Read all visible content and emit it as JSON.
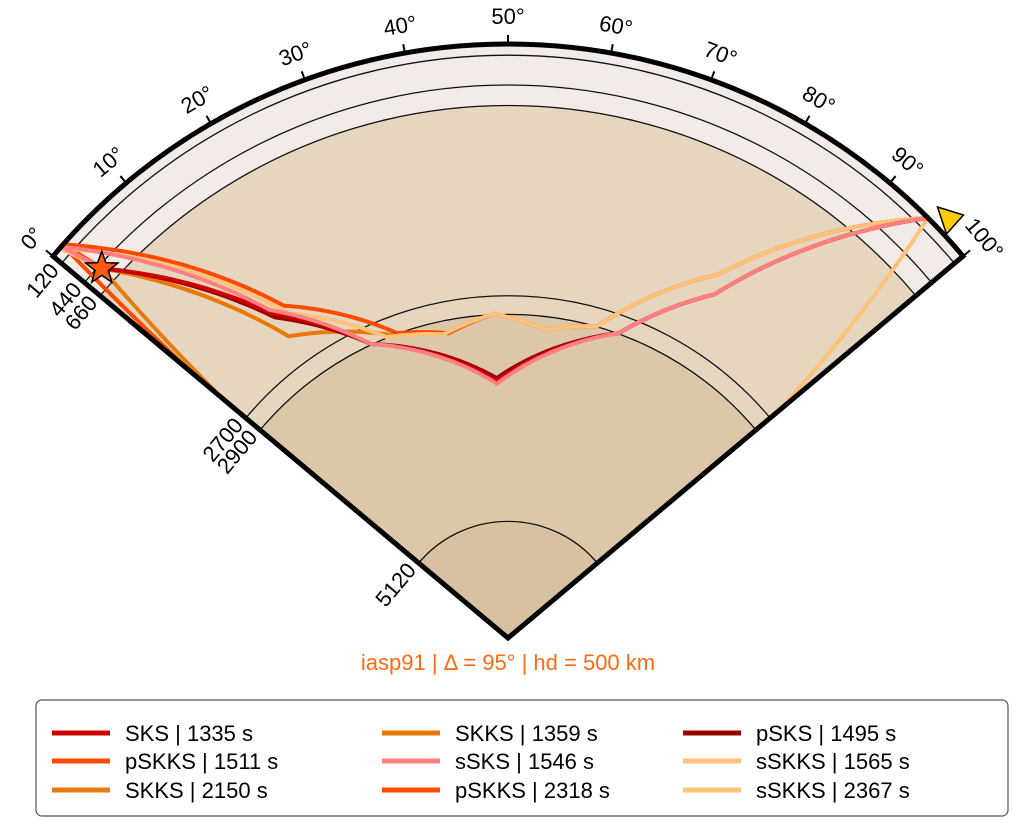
{
  "diagram": {
    "distance_labels": [
      "0°",
      "10°",
      "20°",
      "30°",
      "40°",
      "50°",
      "60°",
      "70°",
      "80°",
      "90°",
      "100°"
    ],
    "depth_labels": [
      "120",
      "440",
      "660",
      "2700",
      "2900",
      "5120"
    ],
    "subtitle": "iasp91 | Δ = 95° | hd = 500 km",
    "legend": [
      {
        "label": "SKS | 1335 s",
        "color": "#cc0000"
      },
      {
        "label": "SKKS | 1359 s",
        "color": "#e87800"
      },
      {
        "label": "pSKS | 1495 s",
        "color": "#990000"
      },
      {
        "label": "pSKKS | 1511 s",
        "color": "#ff4a00"
      },
      {
        "label": "sSKS | 1546 s",
        "color": "#ff8080"
      },
      {
        "label": "sSKKS | 1565 s",
        "color": "#ffc27a"
      },
      {
        "label": "SKKS | 2150 s",
        "color": "#e47c12"
      },
      {
        "label": "pSKKS | 2318 s",
        "color": "#ff4a00"
      },
      {
        "label": "sSKKS | 2367 s",
        "color": "#ffc27a"
      }
    ]
  }
}
